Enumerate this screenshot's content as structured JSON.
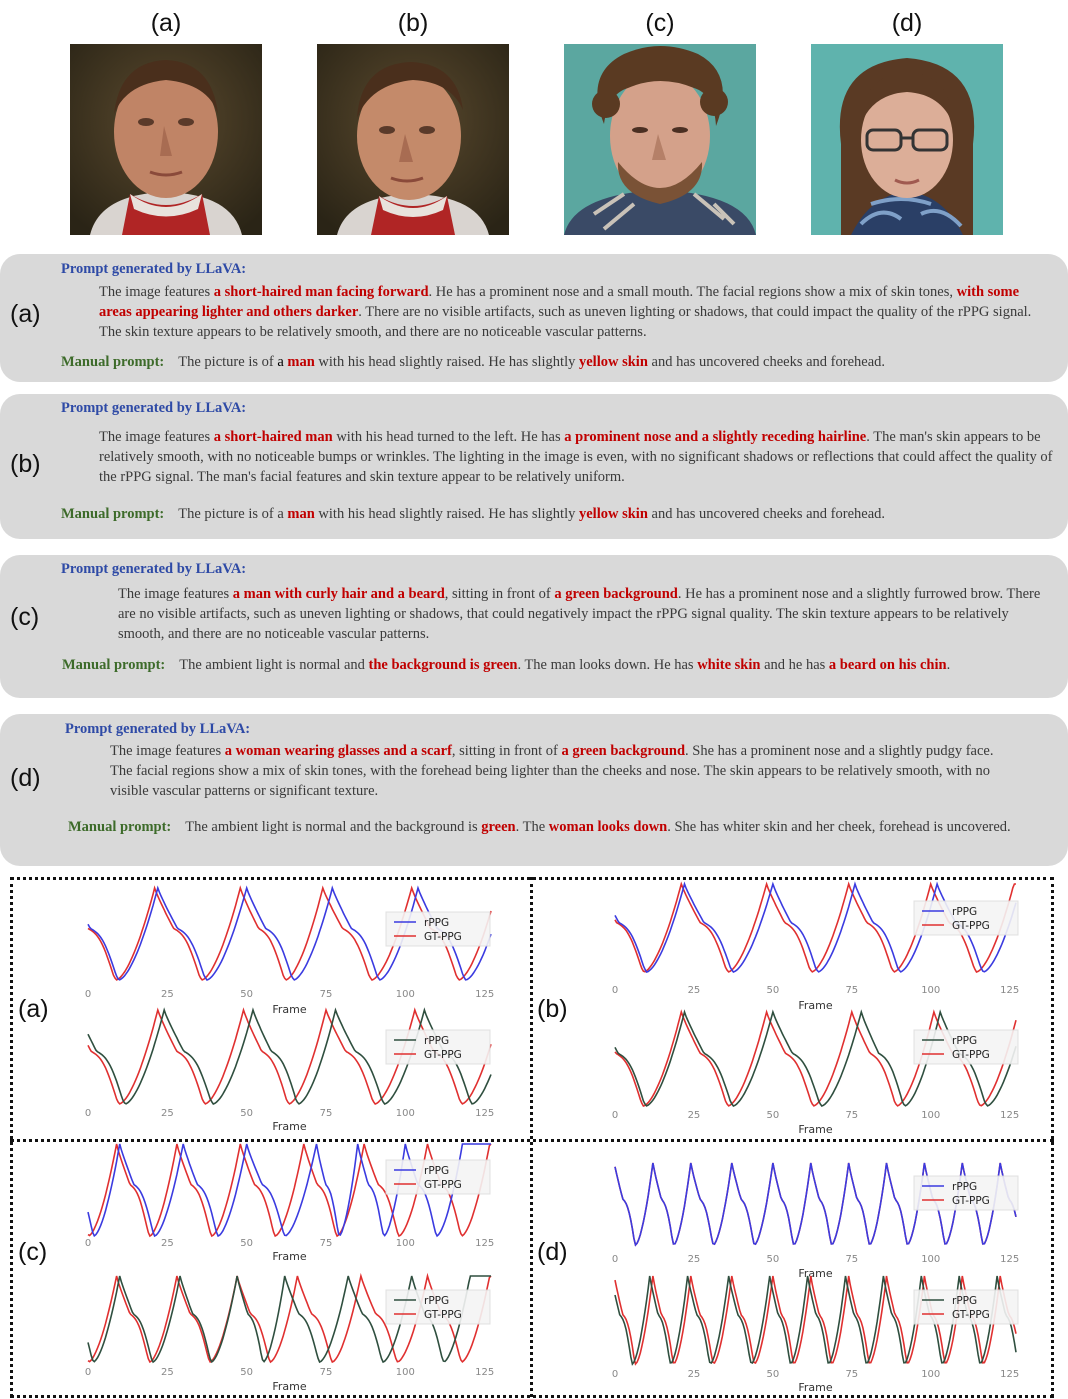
{
  "faces": [
    {
      "label": "(a)"
    },
    {
      "label": "(b)"
    },
    {
      "label": "(c)"
    },
    {
      "label": "(d)"
    }
  ],
  "prompts": [
    {
      "letter": "(a)",
      "llava_title": "Prompt generated by LLaVA:",
      "manual_label": "Manual prompt:",
      "llava": [
        {
          "t": "The image features "
        },
        {
          "t": "a short-haired man facing forward",
          "hl": true
        },
        {
          "t": ". He has a prominent nose and a small mouth. The facial regions show a mix of skin tones, "
        },
        {
          "t": "with some areas appearing lighter and others darker",
          "hl": true
        },
        {
          "t": ". There are no visible artifacts, such as uneven lighting or shadows, that could impact the quality of the rPPG signal. The skin texture appears to be relatively smooth, and there are no noticeable vascular patterns."
        }
      ],
      "manual": [
        {
          "t": "The picture is of "
        },
        {
          "t": "a",
          "blk": true
        },
        {
          "t": " "
        },
        {
          "t": "man",
          "hl": true
        },
        {
          "t": " with his head slightly raised. He has slightly "
        },
        {
          "t": "yellow skin",
          "hl": true
        },
        {
          "t": " and has uncovered cheeks and forehead."
        }
      ]
    },
    {
      "letter": "(b)",
      "llava_title": "Prompt generated by LLaVA:",
      "manual_label": "Manual prompt:",
      "llava": [
        {
          "t": "The image features "
        },
        {
          "t": "a short-haired man",
          "hl": true
        },
        {
          "t": " with his head turned to the left. He has "
        },
        {
          "t": "a prominent nose and a slightly receding hairline",
          "hl": true
        },
        {
          "t": ". The man's skin appears to be relatively smooth, with no noticeable bumps or wrinkles. The lighting in the image is even, with no significant shadows or reflections that could affect the quality of the rPPG signal. The man's facial features and skin texture appear to be relatively uniform."
        }
      ],
      "manual": [
        {
          "t": "The picture is of a "
        },
        {
          "t": "man",
          "hl": true
        },
        {
          "t": " with his head slightly raised. He has slightly "
        },
        {
          "t": "yellow skin",
          "hl": true
        },
        {
          "t": " and has uncovered cheeks and forehead."
        }
      ]
    },
    {
      "letter": "(c)",
      "llava_title": "Prompt generated by LLaVA:",
      "manual_label": "Manual prompt:",
      "llava": [
        {
          "t": "The image features "
        },
        {
          "t": "a man with curly hair and a beard",
          "hl": true
        },
        {
          "t": ", sitting in front of "
        },
        {
          "t": "a green background",
          "hl": true
        },
        {
          "t": ". He has a prominent nose and a slightly furrowed brow. There are no visible artifacts, such as uneven lighting or shadows, that could negatively impact the rPPG signal quality. The skin texture appears to be relatively smooth, and there are no noticeable vascular patterns."
        }
      ],
      "manual": [
        {
          "t": "The ambient light is normal and "
        },
        {
          "t": "the background is green",
          "hl": true
        },
        {
          "t": ". The man looks down. He has "
        },
        {
          "t": "white skin",
          "hl": true
        },
        {
          "t": " and he has "
        },
        {
          "t": "a beard on his chin",
          "hl": true
        },
        {
          "t": "."
        }
      ]
    },
    {
      "letter": "(d)",
      "llava_title": "Prompt generated by LLaVA:",
      "manual_label": "Manual prompt:",
      "llava": [
        {
          "t": "The image features "
        },
        {
          "t": "a woman wearing glasses and a scarf",
          "hl": true
        },
        {
          "t": ", sitting in front of "
        },
        {
          "t": "a green background",
          "hl": true
        },
        {
          "t": ". She has a prominent nose and a slightly pudgy face. The facial regions show a mix of skin tones, with the forehead being lighter than the cheeks and nose. The skin appears to be relatively smooth, with no visible vascular patterns or significant texture."
        }
      ],
      "manual": [
        {
          "t": "The ambient light is normal and the background is "
        },
        {
          "t": "green",
          "hl": true
        },
        {
          "t": ". The "
        },
        {
          "t": "woman looks down",
          "hl": true
        },
        {
          "t": ". She has whiter skin and her cheek, forehead  is uncovered."
        }
      ]
    }
  ],
  "plot_panels": [
    {
      "label": "(a)"
    },
    {
      "label": "(b)"
    },
    {
      "label": "(c)"
    },
    {
      "label": "(d)"
    }
  ],
  "colors": {
    "rppg_blue": "#3b3be0",
    "rppg_dark": "#2f4f3f",
    "gt_red": "#e03030",
    "panel_bg": "#d9d9d9",
    "title_blue": "#2e4aa6",
    "manual_green": "#3d6b2a",
    "highlight_red": "#c00000"
  },
  "chart_data": [
    {
      "panel": "(a)",
      "type": "line",
      "xlabel": "Frame",
      "xticks": [
        0,
        25,
        50,
        75,
        100,
        125
      ],
      "xlim": [
        0,
        127
      ],
      "plots": [
        {
          "series": [
            {
              "name": "rPPG",
              "color": "blue",
              "peaks": [
                22,
                50,
                77,
                104
              ],
              "phase": 0.0
            },
            {
              "name": "GT-PPG",
              "color": "red",
              "peaks": [
                21,
                48,
                74,
                102
              ],
              "phase": 0.0
            }
          ]
        },
        {
          "series": [
            {
              "name": "rPPG",
              "color": "dark",
              "peaks": [
                24,
                52,
                78,
                106
              ],
              "phase": 0.0
            },
            {
              "name": "GT-PPG",
              "color": "red",
              "peaks": [
                22,
                49,
                75,
                103
              ],
              "phase": 0.0
            }
          ]
        }
      ]
    },
    {
      "panel": "(b)",
      "type": "line",
      "xlabel": "Frame",
      "xticks": [
        0,
        25,
        50,
        75,
        100,
        125
      ],
      "xlim": [
        0,
        127
      ],
      "plots": [
        {
          "series": [
            {
              "name": "rPPG",
              "color": "blue",
              "peaks": [
                22,
                50,
                76,
                102
              ],
              "phase": 0.0
            },
            {
              "name": "GT-PPG",
              "color": "red",
              "peaks": [
                21,
                48,
                74,
                100
              ],
              "phase": 0.0
            }
          ]
        },
        {
          "series": [
            {
              "name": "rPPG",
              "color": "dark",
              "peaks": [
                22,
                50,
                78,
                103
              ],
              "phase": 0.0
            },
            {
              "name": "GT-PPG",
              "color": "red",
              "peaks": [
                21,
                48,
                75,
                101
              ],
              "phase": 0.0
            }
          ]
        }
      ]
    },
    {
      "panel": "(c)",
      "type": "line",
      "xlabel": "Frame",
      "xticks": [
        0,
        25,
        50,
        75,
        100,
        125
      ],
      "xlim": [
        0,
        127
      ],
      "plots": [
        {
          "series": [
            {
              "name": "rPPG",
              "color": "blue",
              "peaks": [
                10,
                30,
                50,
                72,
                85,
                100
              ],
              "phase": 0.0
            },
            {
              "name": "GT-PPG",
              "color": "red",
              "peaks": [
                9,
                28,
                48,
                68,
                87,
                107
              ],
              "phase": 0.0
            }
          ]
        },
        {
          "series": [
            {
              "name": "rPPG",
              "color": "dark",
              "peaks": [
                10,
                29,
                47,
                62,
                82,
                102
              ],
              "phase": 0.0
            },
            {
              "name": "GT-PPG",
              "color": "red",
              "peaks": [
                9,
                28,
                47,
                66,
                86,
                107
              ],
              "phase": 0.0
            }
          ]
        }
      ]
    },
    {
      "panel": "(d)",
      "type": "line",
      "xlabel": "Frame",
      "xticks": [
        0,
        25,
        50,
        75,
        100,
        125
      ],
      "xlim": [
        0,
        127
      ],
      "plots": [
        {
          "series": [
            {
              "name": "rPPG",
              "color": "blue",
              "peaks": [
                12,
                24,
                37,
                50,
                62,
                74,
                86,
                98,
                110,
                122
              ],
              "phase": 0.0
            },
            {
              "name": "GT-PPG",
              "color": "red",
              "peaks": [
                12,
                24,
                37,
                50,
                62,
                74,
                86,
                98,
                110,
                122
              ],
              "phase": 0.0
            }
          ]
        },
        {
          "series": [
            {
              "name": "rPPG",
              "color": "dark",
              "peaks": [
                11,
                23,
                36,
                49,
                61,
                73,
                85,
                97,
                109,
                121
              ],
              "phase": 0.0
            },
            {
              "name": "GT-PPG",
              "color": "red",
              "peaks": [
                12,
                24,
                37,
                50,
                62,
                74,
                86,
                98,
                110,
                122
              ],
              "phase": 0.0
            }
          ]
        }
      ]
    }
  ]
}
